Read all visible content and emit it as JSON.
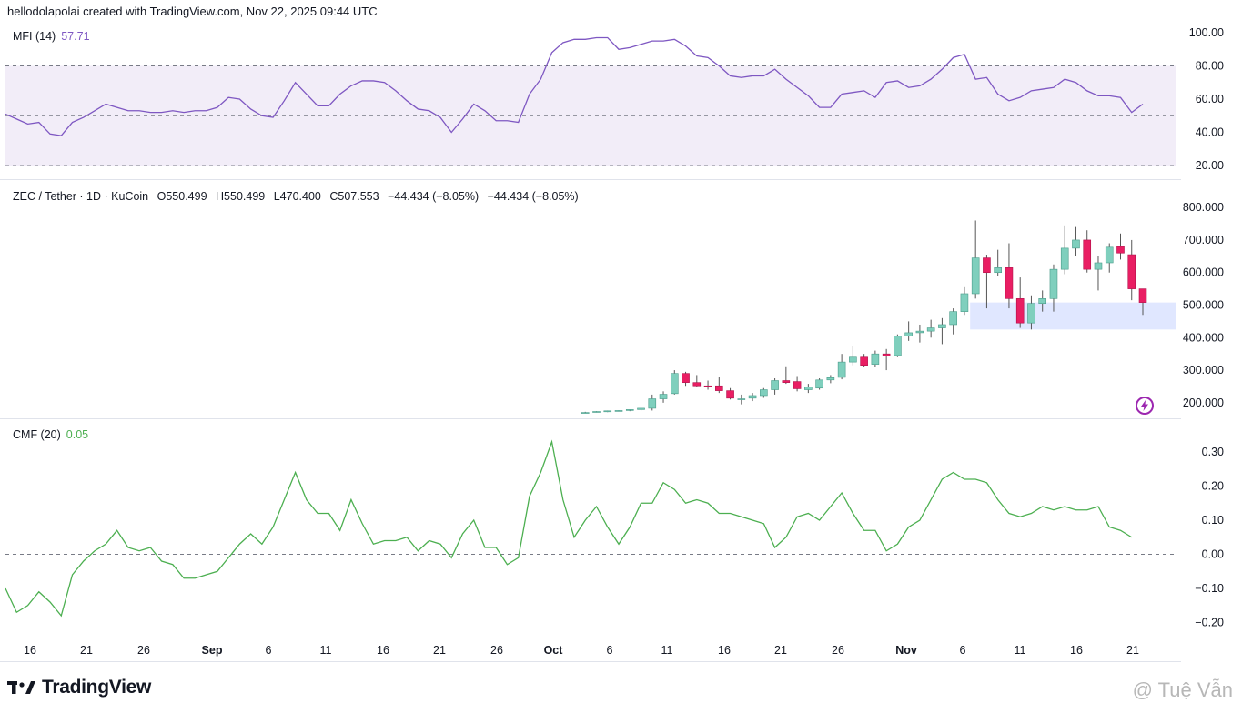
{
  "header": {
    "text": "hellodolapolai created with TradingView.com, Nov 22, 2025 09:44 UTC"
  },
  "mfi_pane": {
    "label": "MFI (14)",
    "value": "57.71",
    "line_color": "#7e57c2",
    "band_color": "#ede7f6"
  },
  "price_pane": {
    "symbol": "ZEC / Tether · 1D · KuCoin",
    "open": "O550.499",
    "high": "H550.499",
    "low": "L470.400",
    "close": "C507.553",
    "change": "−44.434 (−8.05%)",
    "change2": "−44.434 (−8.05%)",
    "up_color": "#7fcfbd",
    "down_color": "#e91e63",
    "zone_color": "#dbe3ff"
  },
  "cmf_pane": {
    "label": "CMF (20)",
    "value": "0.05",
    "line_color": "#4caf50"
  },
  "x_axis": {
    "labels": [
      "16",
      "21",
      "26",
      "Sep",
      "6",
      "11",
      "16",
      "21",
      "26",
      "Oct",
      "6",
      "11",
      "16",
      "21",
      "26",
      "Nov",
      "6",
      "11",
      "16",
      "21"
    ]
  },
  "branding": {
    "logo": "TradingView",
    "watermark": "@ Tuệ Vẫn",
    "logo_icon": "tradingview-logo-icon",
    "flash_icon": "lightning-icon"
  },
  "chart_data": [
    {
      "type": "line",
      "title": "MFI (14)",
      "ylim": [
        20,
        100
      ],
      "y_ticks": [
        "100.00",
        "80.00",
        "60.00",
        "40.00",
        "20.00"
      ],
      "bands": {
        "upper": 80,
        "middle": 50,
        "lower": 20
      },
      "series": [
        {
          "name": "MFI (14)",
          "values": [
            51,
            48,
            45,
            46,
            39,
            38,
            46,
            49,
            53,
            57,
            55,
            53,
            53,
            52,
            52,
            53,
            52,
            53,
            53,
            55,
            61,
            60,
            54,
            50,
            49,
            59,
            70,
            63,
            56,
            56,
            63,
            68,
            71,
            71,
            70,
            65,
            59,
            54,
            53,
            49,
            40,
            48,
            57,
            53,
            47,
            47,
            46,
            63,
            72,
            88,
            94,
            96,
            96,
            97,
            97,
            90,
            91,
            93,
            95,
            95,
            96,
            92,
            86,
            85,
            80,
            74,
            73,
            74,
            74,
            78,
            72,
            67,
            62,
            55,
            55,
            63,
            64,
            65,
            61,
            70,
            71,
            67,
            68,
            72,
            78,
            85,
            87,
            72,
            73,
            63,
            59,
            61,
            65,
            66,
            67,
            72,
            70,
            65,
            62,
            62,
            61,
            52,
            57
          ]
        }
      ]
    },
    {
      "type": "candlestick",
      "title": "ZEC / Tether · 1D · KuCoin",
      "ylim": [
        180,
        820
      ],
      "y_ticks": [
        "800.000",
        "700.000",
        "600.000",
        "500.000",
        "400.000",
        "300.000",
        "200.000"
      ],
      "zone": {
        "low": 425,
        "high": 508
      },
      "candles": [
        {
          "o": 170,
          "h": 172,
          "l": 168,
          "c": 170
        },
        {
          "o": 172,
          "h": 174,
          "l": 170,
          "c": 173
        },
        {
          "o": 173,
          "h": 176,
          "l": 171,
          "c": 175
        },
        {
          "o": 175,
          "h": 177,
          "l": 173,
          "c": 176
        },
        {
          "o": 176,
          "h": 180,
          "l": 174,
          "c": 179
        },
        {
          "o": 179,
          "h": 184,
          "l": 175,
          "c": 183
        },
        {
          "o": 183,
          "h": 225,
          "l": 176,
          "c": 212
        },
        {
          "o": 212,
          "h": 235,
          "l": 200,
          "c": 226
        },
        {
          "o": 228,
          "h": 300,
          "l": 225,
          "c": 290
        },
        {
          "o": 290,
          "h": 295,
          "l": 252,
          "c": 262
        },
        {
          "o": 262,
          "h": 285,
          "l": 250,
          "c": 252
        },
        {
          "o": 252,
          "h": 268,
          "l": 240,
          "c": 250
        },
        {
          "o": 252,
          "h": 280,
          "l": 230,
          "c": 237
        },
        {
          "o": 237,
          "h": 245,
          "l": 210,
          "c": 214
        },
        {
          "o": 211,
          "h": 225,
          "l": 195,
          "c": 212
        },
        {
          "o": 214,
          "h": 230,
          "l": 205,
          "c": 222
        },
        {
          "o": 222,
          "h": 245,
          "l": 215,
          "c": 240
        },
        {
          "o": 240,
          "h": 275,
          "l": 225,
          "c": 268
        },
        {
          "o": 268,
          "h": 312,
          "l": 258,
          "c": 262
        },
        {
          "o": 265,
          "h": 282,
          "l": 235,
          "c": 243
        },
        {
          "o": 240,
          "h": 258,
          "l": 230,
          "c": 248
        },
        {
          "o": 245,
          "h": 275,
          "l": 240,
          "c": 270
        },
        {
          "o": 270,
          "h": 285,
          "l": 260,
          "c": 277
        },
        {
          "o": 278,
          "h": 350,
          "l": 272,
          "c": 325
        },
        {
          "o": 325,
          "h": 375,
          "l": 315,
          "c": 340
        },
        {
          "o": 340,
          "h": 350,
          "l": 310,
          "c": 315
        },
        {
          "o": 318,
          "h": 360,
          "l": 310,
          "c": 350
        },
        {
          "o": 350,
          "h": 365,
          "l": 300,
          "c": 343
        },
        {
          "o": 345,
          "h": 410,
          "l": 340,
          "c": 405
        },
        {
          "o": 405,
          "h": 450,
          "l": 390,
          "c": 415
        },
        {
          "o": 415,
          "h": 440,
          "l": 385,
          "c": 420
        },
        {
          "o": 420,
          "h": 455,
          "l": 400,
          "c": 430
        },
        {
          "o": 430,
          "h": 460,
          "l": 380,
          "c": 440
        },
        {
          "o": 440,
          "h": 490,
          "l": 410,
          "c": 480
        },
        {
          "o": 480,
          "h": 555,
          "l": 470,
          "c": 535
        },
        {
          "o": 535,
          "h": 760,
          "l": 520,
          "c": 645
        },
        {
          "o": 645,
          "h": 655,
          "l": 490,
          "c": 600
        },
        {
          "o": 600,
          "h": 670,
          "l": 590,
          "c": 615
        },
        {
          "o": 615,
          "h": 690,
          "l": 490,
          "c": 520
        },
        {
          "o": 520,
          "h": 585,
          "l": 430,
          "c": 445
        },
        {
          "o": 445,
          "h": 530,
          "l": 425,
          "c": 505
        },
        {
          "o": 505,
          "h": 545,
          "l": 480,
          "c": 520
        },
        {
          "o": 520,
          "h": 625,
          "l": 480,
          "c": 610
        },
        {
          "o": 610,
          "h": 745,
          "l": 595,
          "c": 675
        },
        {
          "o": 675,
          "h": 740,
          "l": 650,
          "c": 700
        },
        {
          "o": 700,
          "h": 730,
          "l": 600,
          "c": 610
        },
        {
          "o": 610,
          "h": 650,
          "l": 545,
          "c": 630
        },
        {
          "o": 630,
          "h": 690,
          "l": 600,
          "c": 678
        },
        {
          "o": 680,
          "h": 720,
          "l": 640,
          "c": 660
        },
        {
          "o": 655,
          "h": 700,
          "l": 515,
          "c": 550
        },
        {
          "o": 550,
          "h": 550,
          "l": 470,
          "c": 508
        }
      ]
    },
    {
      "type": "line",
      "title": "CMF (20)",
      "ylim": [
        -0.25,
        0.35
      ],
      "y_ticks": [
        "0.30",
        "0.20",
        "0.10",
        "0.00",
        "−0.10",
        "−0.20"
      ],
      "zero_line": 0,
      "series": [
        {
          "name": "CMF (20)",
          "values": [
            -0.1,
            -0.17,
            -0.15,
            -0.11,
            -0.14,
            -0.18,
            -0.06,
            -0.02,
            0.01,
            0.03,
            0.07,
            0.02,
            0.01,
            0.02,
            -0.02,
            -0.03,
            -0.07,
            -0.07,
            -0.06,
            -0.05,
            -0.01,
            0.03,
            0.06,
            0.03,
            0.08,
            0.16,
            0.24,
            0.16,
            0.12,
            0.12,
            0.07,
            0.16,
            0.09,
            0.03,
            0.04,
            0.04,
            0.05,
            0.01,
            0.04,
            0.03,
            -0.01,
            0.06,
            0.1,
            0.02,
            0.02,
            -0.03,
            -0.01,
            0.17,
            0.24,
            0.33,
            0.16,
            0.05,
            0.1,
            0.14,
            0.08,
            0.03,
            0.08,
            0.15,
            0.15,
            0.21,
            0.19,
            0.15,
            0.16,
            0.15,
            0.12,
            0.12,
            0.11,
            0.1,
            0.09,
            0.02,
            0.05,
            0.11,
            0.12,
            0.1,
            0.14,
            0.18,
            0.12,
            0.07,
            0.07,
            0.01,
            0.03,
            0.08,
            0.1,
            0.16,
            0.22,
            0.24,
            0.22,
            0.22,
            0.21,
            0.16,
            0.12,
            0.11,
            0.12,
            0.14,
            0.13,
            0.14,
            0.13,
            0.13,
            0.14,
            0.08,
            0.07,
            0.05
          ]
        }
      ]
    }
  ]
}
